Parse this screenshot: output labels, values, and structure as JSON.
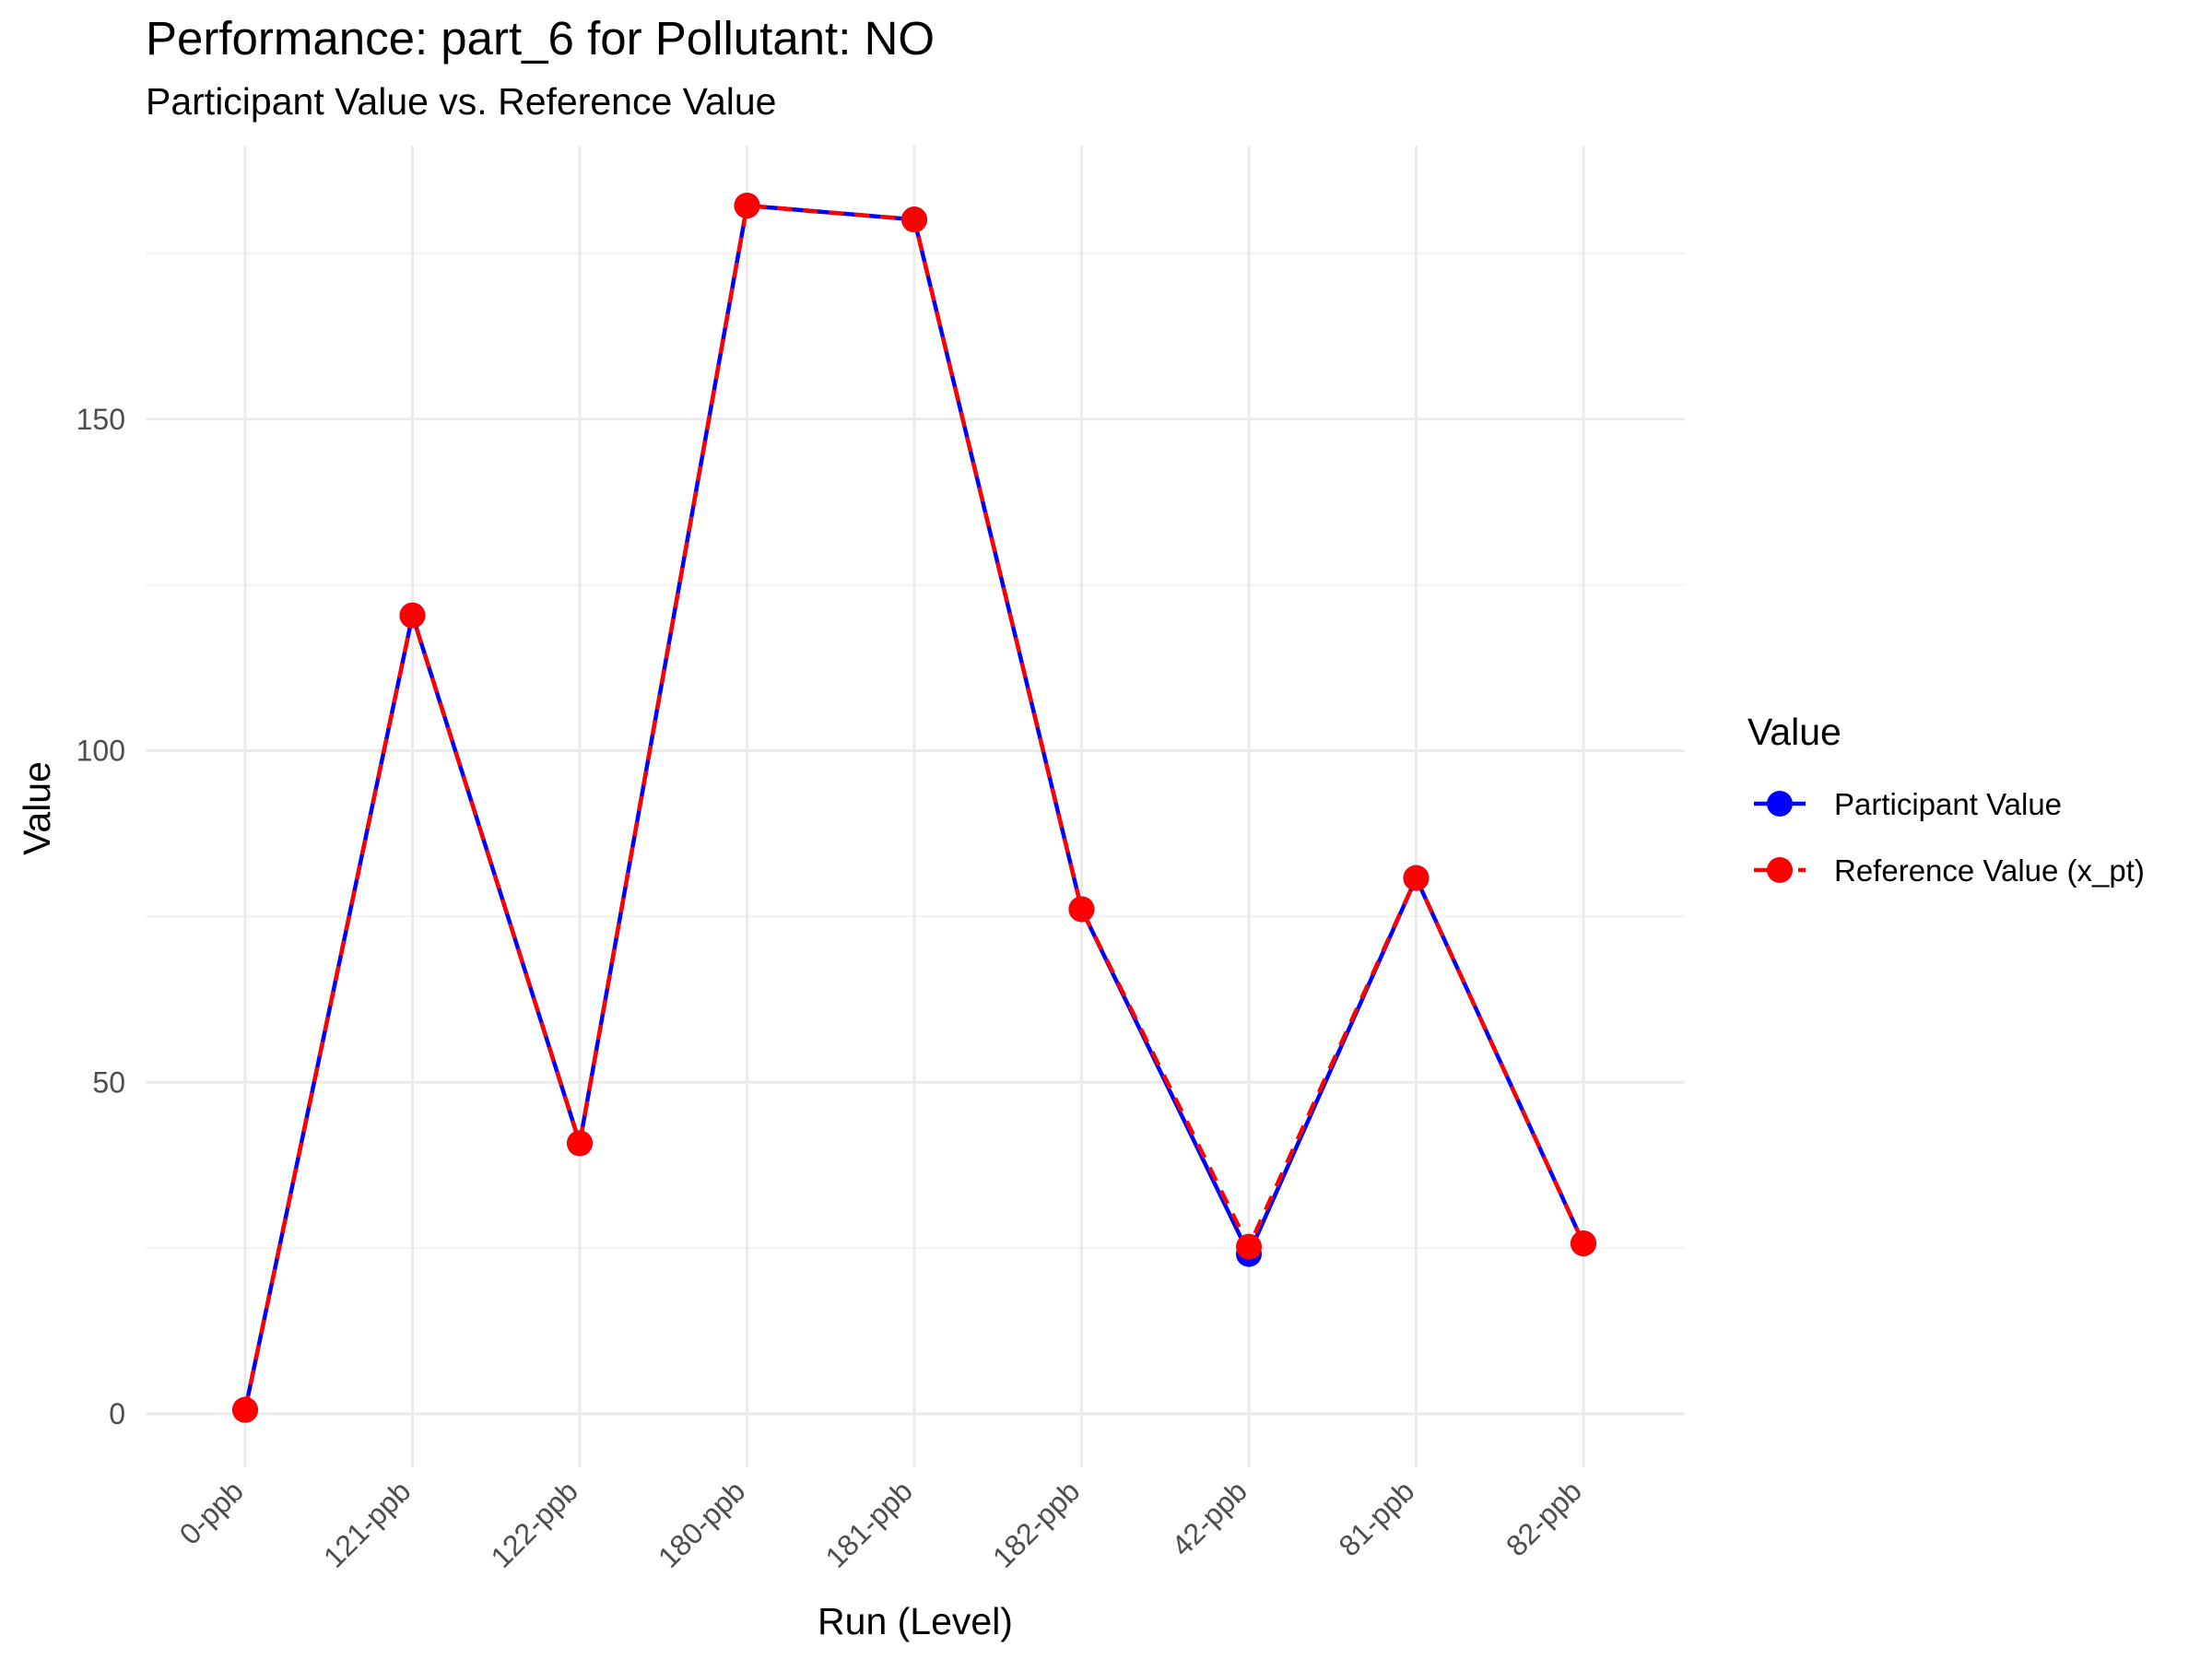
{
  "chart_data": {
    "type": "line",
    "title": "Performance: part_6 for Pollutant: NO",
    "subtitle": "Participant Value vs. Reference Value",
    "xlabel": "Run (Level)",
    "ylabel": "Value",
    "categories": [
      "0-ppb",
      "121-ppb",
      "122-ppb",
      "180-ppb",
      "181-ppb",
      "182-ppb",
      "42-ppb",
      "81-ppb",
      "82-ppb"
    ],
    "ylim": [
      -8,
      191
    ],
    "yticks": [
      0,
      50,
      100,
      150
    ],
    "grid": true,
    "legend": {
      "title": "Value",
      "placement": "right"
    },
    "series": [
      {
        "name": "Participant Value",
        "color": "#0000ff",
        "line_style": "solid",
        "values": [
          0.6,
          120.4,
          40.8,
          182.2,
          180.1,
          76.1,
          24.1,
          80.8,
          25.7
        ]
      },
      {
        "name": "Reference Value (x_pt)",
        "color": "#ff0000",
        "line_style": "dashed",
        "values": [
          0.6,
          120.4,
          40.8,
          182.2,
          180.1,
          76.1,
          25.2,
          80.8,
          25.7
        ]
      }
    ]
  }
}
